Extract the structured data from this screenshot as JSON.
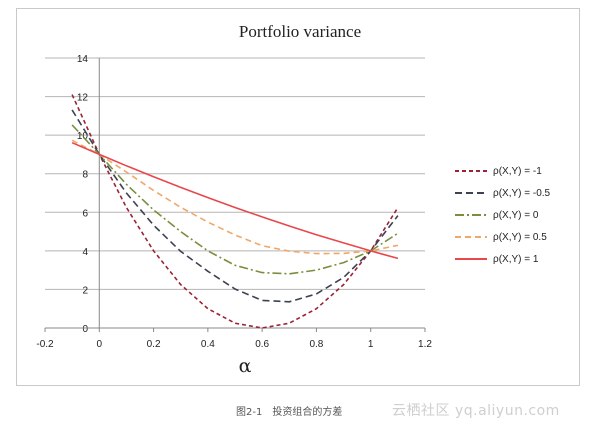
{
  "chart_data": {
    "type": "line",
    "title": "Portfolio variance",
    "xlabel": "α",
    "ylabel": "",
    "xlim": [
      -0.2,
      1.2
    ],
    "ylim": [
      0,
      14
    ],
    "x_ticks": [
      "-0.2",
      "0",
      "0.2",
      "0.4",
      "0.6",
      "0.8",
      "1",
      "1.2"
    ],
    "y_ticks": [
      "0",
      "2",
      "4",
      "6",
      "8",
      "10",
      "12",
      "14"
    ],
    "grid": "horizontal",
    "legend_position": "right",
    "x": [
      -0.1,
      0.0,
      0.1,
      0.2,
      0.3,
      0.4,
      0.5,
      0.6,
      0.7,
      0.8,
      0.9,
      1.0,
      1.1
    ],
    "series": [
      {
        "name": "ρ(X,Y) = -1",
        "color": "#9b2335",
        "dash": "4,3",
        "values": [
          12.1,
          9.0,
          6.25,
          4.0,
          2.25,
          1.0,
          0.25,
          0.0,
          0.25,
          1.0,
          2.25,
          4.0,
          6.25
        ]
      },
      {
        "name": "ρ(X,Y) = -0.5",
        "color": "#3b4252",
        "dash": "7,4",
        "values": [
          11.31,
          9.0,
          7.0,
          5.33,
          3.97,
          2.94,
          2.02,
          1.43,
          1.36,
          1.77,
          2.62,
          4.0,
          5.83
        ]
      },
      {
        "name": "ρ(X,Y) = 0",
        "color": "#7a8f3d",
        "dash": "9,3,2,3",
        "values": [
          10.53,
          9.0,
          7.45,
          6.12,
          5.0,
          4.0,
          3.25,
          2.87,
          2.81,
          3.0,
          3.39,
          4.0,
          4.91
        ]
      },
      {
        "name": "ρ(X,Y) = 0.5",
        "color": "#f0a868",
        "dash": "6,4",
        "values": [
          9.73,
          9.0,
          8.09,
          7.13,
          6.26,
          5.49,
          4.82,
          4.27,
          3.98,
          3.86,
          3.87,
          4.0,
          4.29
        ]
      },
      {
        "name": "ρ(X,Y) = 1",
        "color": "#e8474c",
        "dash": "",
        "values": [
          9.61,
          9.0,
          8.41,
          7.84,
          7.29,
          6.76,
          6.25,
          5.76,
          5.29,
          4.84,
          4.41,
          4.0,
          3.61
        ]
      }
    ]
  },
  "caption": "图2-1　投资组合的方差",
  "watermark": "云栖社区 yq.aliyun.com"
}
